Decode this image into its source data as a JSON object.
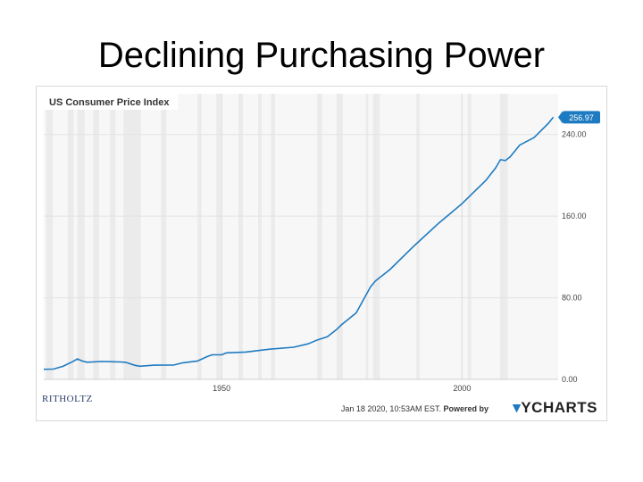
{
  "slide": {
    "title": "Declining Purchasing Power"
  },
  "chart_data": {
    "type": "line",
    "title": "US Consumer Price Index",
    "xlabel": "",
    "ylabel": "",
    "xlim": [
      1913,
      2020
    ],
    "ylim": [
      0,
      280
    ],
    "x_ticks": [
      {
        "value": 1950,
        "label": "1950"
      },
      {
        "value": 2000,
        "label": "2000"
      }
    ],
    "y_ticks": [
      {
        "value": 0,
        "label": "0.00"
      },
      {
        "value": 80,
        "label": "80.00"
      },
      {
        "value": 160,
        "label": "160.00"
      },
      {
        "value": 240,
        "label": "240.00"
      }
    ],
    "grid": true,
    "recession_shading": true,
    "last_value_label": "256.97",
    "series": [
      {
        "color": "#1f7bc1",
        "x": [
          1913,
          1915,
          1917,
          1919,
          1920,
          1921,
          1922,
          1925,
          1929,
          1930,
          1932,
          1933,
          1936,
          1940,
          1942,
          1945,
          1947,
          1948,
          1950,
          1951,
          1955,
          1960,
          1965,
          1968,
          1970,
          1972,
          1974,
          1975,
          1978,
          1980,
          1981,
          1982,
          1985,
          1990,
          1995,
          2000,
          2005,
          2007,
          2008,
          2009,
          2010,
          2012,
          2015,
          2018,
          2019
        ],
        "y": [
          9.9,
          10.1,
          12.8,
          17.3,
          20.0,
          17.9,
          16.8,
          17.5,
          17.1,
          16.7,
          13.7,
          12.9,
          13.9,
          14.0,
          16.3,
          18.0,
          22.3,
          24.1,
          24.1,
          26.0,
          26.8,
          29.6,
          31.5,
          34.8,
          38.8,
          41.8,
          49.3,
          53.8,
          65.2,
          82.4,
          90.9,
          96.5,
          107.6,
          130.7,
          152.4,
          172.2,
          195.3,
          207.3,
          215.3,
          214.5,
          218.1,
          229.6,
          237.0,
          251.1,
          256.97
        ]
      }
    ],
    "footer": {
      "timestamp": "Jan 18 2020, 10:53AM EST.",
      "powered_by": "Powered by",
      "provider_logo": "YCHARTS",
      "brand_logo": "RITHOLTZ"
    }
  },
  "colors": {
    "line": "#1f7bc1",
    "shading": "#ebebeb",
    "grid": "#e3e3e3",
    "badge": "#1f7bc1"
  }
}
